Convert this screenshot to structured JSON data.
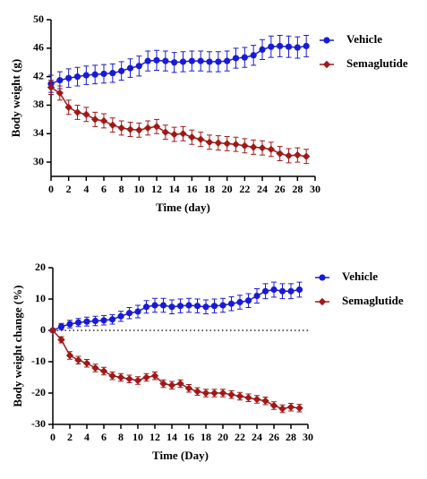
{
  "chart_data": [
    {
      "type": "line",
      "y_label": "Body weight (g)",
      "x_label": "Time (day)",
      "x": [
        0,
        1,
        2,
        3,
        4,
        5,
        6,
        7,
        8,
        9,
        10,
        11,
        12,
        13,
        14,
        15,
        16,
        17,
        18,
        19,
        20,
        21,
        22,
        23,
        24,
        25,
        26,
        27,
        28,
        29
      ],
      "xlim": [
        0,
        30
      ],
      "xticks": [
        0,
        2,
        4,
        6,
        8,
        10,
        12,
        14,
        16,
        18,
        20,
        22,
        24,
        26,
        28,
        30
      ],
      "ylim": [
        28,
        50
      ],
      "yticks": [
        30,
        34,
        38,
        42,
        46,
        50
      ],
      "series": [
        {
          "name": "Vehicle",
          "color": "#1a1ad6",
          "marker": "circle",
          "values": [
            41,
            41.5,
            41.8,
            42,
            42.2,
            42.3,
            42.4,
            42.5,
            42.8,
            43.2,
            43.5,
            44.2,
            44.3,
            44.2,
            44,
            44.1,
            44.2,
            44.2,
            44.1,
            44.1,
            44.2,
            44.6,
            44.7,
            45,
            45.8,
            46.2,
            46.3,
            46.2,
            46.1,
            46.3
          ],
          "errors": [
            1.2,
            1.2,
            1.3,
            1.3,
            1.3,
            1.3,
            1.3,
            1.3,
            1.3,
            1.3,
            1.4,
            1.4,
            1.4,
            1.4,
            1.4,
            1.4,
            1.4,
            1.4,
            1.4,
            1.4,
            1.4,
            1.4,
            1.4,
            1.4,
            1.4,
            1.5,
            1.5,
            1.5,
            1.5,
            1.5
          ]
        },
        {
          "name": "Semaglutide",
          "color": "#a01818",
          "marker": "diamond",
          "values": [
            40.5,
            39.7,
            37.7,
            37,
            36.7,
            36,
            35.8,
            35.2,
            34.8,
            34.6,
            34.5,
            34.8,
            35,
            34.2,
            33.9,
            34,
            33.5,
            33.2,
            32.8,
            32.7,
            32.6,
            32.5,
            32.3,
            32.1,
            32,
            31.8,
            31.2,
            30.9,
            31,
            30.8
          ],
          "errors": [
            1,
            1,
            1,
            1,
            1,
            1,
            1,
            1,
            1,
            1,
            1,
            1,
            1,
            1,
            1,
            1,
            1,
            1,
            1,
            1,
            1,
            1,
            1,
            1,
            1,
            1,
            1,
            1,
            1,
            1
          ]
        }
      ]
    },
    {
      "type": "line",
      "y_label": "Body weight change (%)",
      "x_label": "Time (Day)",
      "x": [
        0,
        1,
        2,
        3,
        4,
        5,
        6,
        7,
        8,
        9,
        10,
        11,
        12,
        13,
        14,
        15,
        16,
        17,
        18,
        19,
        20,
        21,
        22,
        23,
        24,
        25,
        26,
        27,
        28,
        29
      ],
      "xlim": [
        0,
        30
      ],
      "xticks": [
        0,
        2,
        4,
        6,
        8,
        10,
        12,
        14,
        16,
        18,
        20,
        22,
        24,
        26,
        28,
        30
      ],
      "ylim": [
        -30,
        20
      ],
      "yticks": [
        -30,
        -20,
        -10,
        0,
        10,
        20
      ],
      "hline": 0,
      "series": [
        {
          "name": "Vehicle",
          "color": "#1a1ad6",
          "marker": "circle",
          "values": [
            0,
            1.2,
            2,
            2.5,
            2.8,
            3,
            3.2,
            3.5,
            4.5,
            5.5,
            6,
            7.5,
            8,
            8,
            7.5,
            7.8,
            8,
            7.8,
            7.5,
            7.8,
            8,
            8.5,
            9,
            9.5,
            11,
            12.5,
            13,
            12.5,
            12.5,
            13
          ],
          "errors": [
            0,
            1,
            1.2,
            1.3,
            1.4,
            1.5,
            1.5,
            1.5,
            1.6,
            1.8,
            2,
            2,
            2.2,
            2.2,
            2.2,
            2.2,
            2.2,
            2.2,
            2.2,
            2.2,
            2.2,
            2.2,
            2.2,
            2.2,
            2.3,
            2.4,
            2.4,
            2.4,
            2.4,
            2.4
          ]
        },
        {
          "name": "Semaglutide",
          "color": "#a01818",
          "marker": "diamond",
          "values": [
            0,
            -3,
            -8,
            -9.5,
            -10.5,
            -12,
            -13,
            -14.5,
            -15,
            -15.5,
            -16,
            -15,
            -14.5,
            -17,
            -17.5,
            -17,
            -18.5,
            -19.5,
            -20,
            -20,
            -20,
            -20.5,
            -21,
            -21.5,
            -22,
            -22.5,
            -24,
            -25,
            -24.5,
            -24.8
          ],
          "errors": [
            0,
            1,
            1.2,
            1.2,
            1.2,
            1.2,
            1.2,
            1.2,
            1.2,
            1.2,
            1.2,
            1.2,
            1.2,
            1.2,
            1.2,
            1.2,
            1.2,
            1.2,
            1.2,
            1.2,
            1.2,
            1.2,
            1.2,
            1.2,
            1.2,
            1.2,
            1.2,
            1.2,
            1.2,
            1.2
          ]
        }
      ]
    }
  ]
}
